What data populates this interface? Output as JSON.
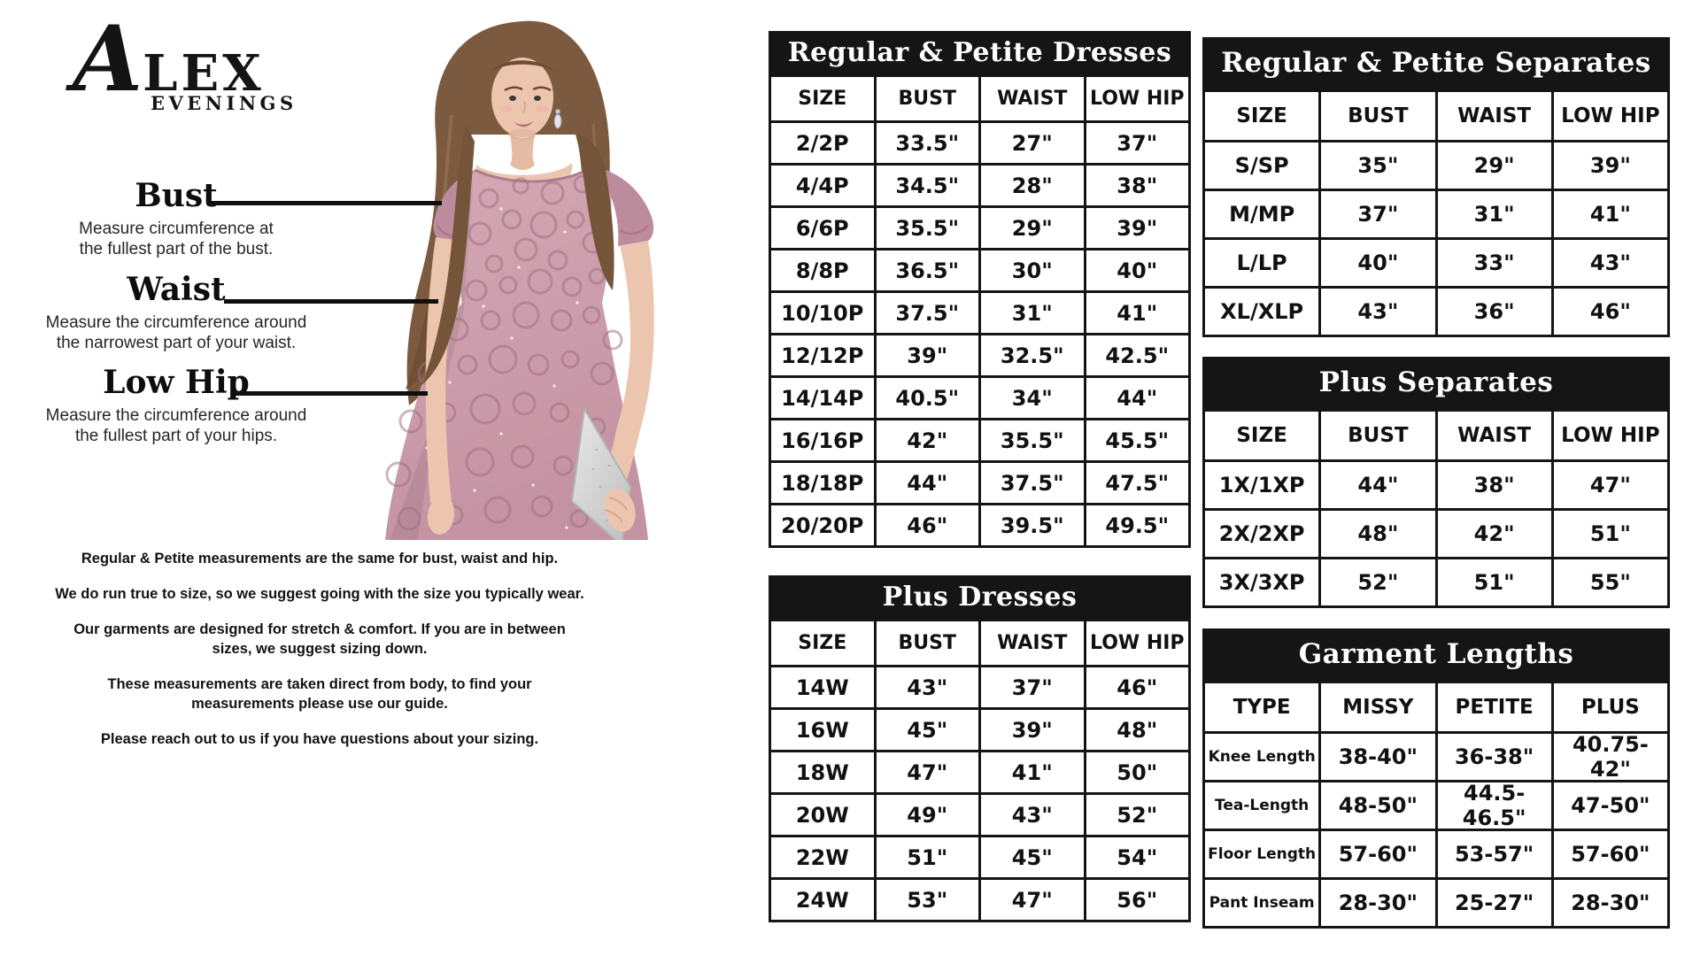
{
  "brand": {
    "name": "ALEX",
    "sub": "EVENINGS"
  },
  "colors": {
    "table_title_bg": "#151515",
    "table_border": "#151515",
    "dress_pink": "#cfa3b1",
    "rose_pink": "#a5697f",
    "clutch_silver": "#d7d7d7"
  },
  "measurement_guide": [
    {
      "label": "Bust",
      "description": "Measure circumference at\nthe fullest part of the bust."
    },
    {
      "label": "Waist",
      "description": "Measure the circumference around\nthe narrowest part of your waist."
    },
    {
      "label": "Low Hip",
      "description": "Measure the circumference around\nthe fullest part of your hips."
    }
  ],
  "notes": [
    "Regular & Petite measurements are the same for bust, waist and hip.",
    "We do run true to size, so we suggest going with the size you typically wear.",
    "Our garments are designed for stretch & comfort. If you are in between\nsizes, we suggest sizing down.",
    "These measurements are taken direct from body, to find your\nmeasurements please use our guide.",
    "Please reach out to us if you have questions about your sizing."
  ],
  "tables": [
    {
      "title": "Regular & Petite Dresses",
      "headers": [
        "SIZE",
        "BUST",
        "WAIST",
        "LOW HIP"
      ],
      "rows": [
        [
          "2/2P",
          "33.5\"",
          "27\"",
          "37\""
        ],
        [
          "4/4P",
          "34.5\"",
          "28\"",
          "38\""
        ],
        [
          "6/6P",
          "35.5\"",
          "29\"",
          "39\""
        ],
        [
          "8/8P",
          "36.5\"",
          "30\"",
          "40\""
        ],
        [
          "10/10P",
          "37.5\"",
          "31\"",
          "41\""
        ],
        [
          "12/12P",
          "39\"",
          "32.5\"",
          "42.5\""
        ],
        [
          "14/14P",
          "40.5\"",
          "34\"",
          "44\""
        ],
        [
          "16/16P",
          "42\"",
          "35.5\"",
          "45.5\""
        ],
        [
          "18/18P",
          "44\"",
          "37.5\"",
          "47.5\""
        ],
        [
          "20/20P",
          "46\"",
          "39.5\"",
          "49.5\""
        ]
      ]
    },
    {
      "title": "Plus Dresses",
      "headers": [
        "SIZE",
        "BUST",
        "WAIST",
        "LOW HIP"
      ],
      "rows": [
        [
          "14W",
          "43\"",
          "37\"",
          "46\""
        ],
        [
          "16W",
          "45\"",
          "39\"",
          "48\""
        ],
        [
          "18W",
          "47\"",
          "41\"",
          "50\""
        ],
        [
          "20W",
          "49\"",
          "43\"",
          "52\""
        ],
        [
          "22W",
          "51\"",
          "45\"",
          "54\""
        ],
        [
          "24W",
          "53\"",
          "47\"",
          "56\""
        ]
      ]
    },
    {
      "title": "Regular & Petite Separates",
      "headers": [
        "SIZE",
        "BUST",
        "WAIST",
        "LOW HIP"
      ],
      "rows": [
        [
          "S/SP",
          "35\"",
          "29\"",
          "39\""
        ],
        [
          "M/MP",
          "37\"",
          "31\"",
          "41\""
        ],
        [
          "L/LP",
          "40\"",
          "33\"",
          "43\""
        ],
        [
          "XL/XLP",
          "43\"",
          "36\"",
          "46\""
        ]
      ]
    },
    {
      "title": "Plus Separates",
      "headers": [
        "SIZE",
        "BUST",
        "WAIST",
        "LOW HIP"
      ],
      "rows": [
        [
          "1X/1XP",
          "44\"",
          "38\"",
          "47\""
        ],
        [
          "2X/2XP",
          "48\"",
          "42\"",
          "51\""
        ],
        [
          "3X/3XP",
          "52\"",
          "51\"",
          "55\""
        ]
      ]
    },
    {
      "title": "Garment Lengths",
      "headers": [
        "TYPE",
        "MISSY",
        "PETITE",
        "PLUS"
      ],
      "rows": [
        [
          "Knee Length",
          "38-40\"",
          "36-38\"",
          "40.75-42\""
        ],
        [
          "Tea-Length",
          "48-50\"",
          "44.5-46.5\"",
          "47-50\""
        ],
        [
          "Floor Length",
          "57-60\"",
          "53-57\"",
          "57-60\""
        ],
        [
          "Pant Inseam",
          "28-30\"",
          "25-27\"",
          "28-30\""
        ]
      ]
    }
  ]
}
